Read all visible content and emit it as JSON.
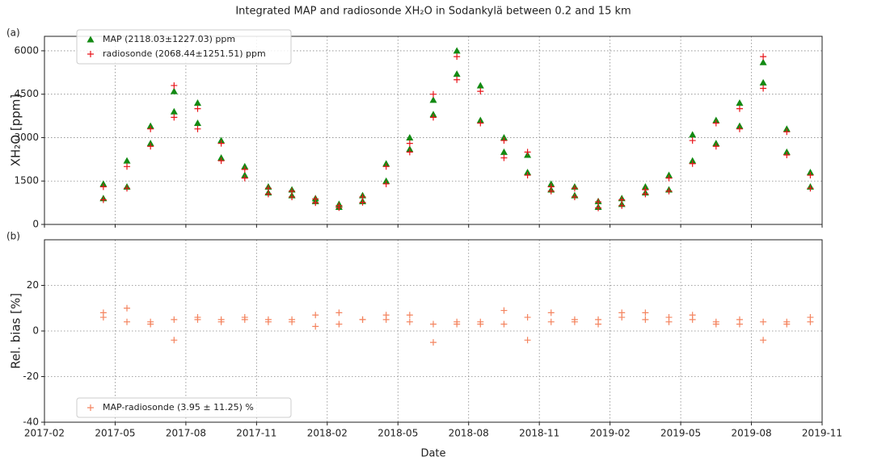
{
  "chart_data": [
    {
      "type": "scatter",
      "title": "Integrated MAP and radiosonde XH₂O in Sodankylä between 0.2 and 15 km",
      "panel": "(a)",
      "ylabel": "XH₂O [ppm]",
      "x": [
        "2017-04",
        "2017-04",
        "2017-05",
        "2017-05",
        "2017-06",
        "2017-06",
        "2017-07",
        "2017-07",
        "2017-08",
        "2017-08",
        "2017-09",
        "2017-09",
        "2017-10",
        "2017-10",
        "2017-11",
        "2017-11",
        "2017-12",
        "2017-12",
        "2018-01",
        "2018-01",
        "2018-02",
        "2018-02",
        "2018-03",
        "2018-03",
        "2018-04",
        "2018-04",
        "2018-05",
        "2018-05",
        "2018-06",
        "2018-06",
        "2018-07",
        "2018-07",
        "2018-08",
        "2018-08",
        "2018-09",
        "2018-09",
        "2018-10",
        "2018-10",
        "2018-11",
        "2018-11",
        "2018-12",
        "2018-12",
        "2019-01",
        "2019-01",
        "2019-02",
        "2019-02",
        "2019-03",
        "2019-03",
        "2019-04",
        "2019-04",
        "2019-05",
        "2019-05",
        "2019-06",
        "2019-06",
        "2019-07",
        "2019-07",
        "2019-08",
        "2019-08",
        "2019-09",
        "2019-09",
        "2019-10",
        "2019-10"
      ],
      "series": [
        {
          "name": "MAP (2118.03±1227.03) ppm",
          "color": "#138a13",
          "marker": "triangle",
          "values": [
            900,
            1400,
            1300,
            2200,
            2800,
            3400,
            3900,
            4600,
            4200,
            3500,
            2900,
            2300,
            2000,
            1700,
            1300,
            1100,
            1000,
            1200,
            800,
            900,
            700,
            600,
            800,
            1000,
            1500,
            2100,
            2600,
            3000,
            3800,
            4300,
            5200,
            6000,
            4800,
            3600,
            3000,
            2500,
            1800,
            2400,
            1400,
            1200,
            1000,
            1300,
            800,
            600,
            700,
            900,
            1100,
            1300,
            1200,
            1700,
            2200,
            3100,
            3600,
            2800,
            4200,
            3400,
            5600,
            4900,
            3300,
            2500,
            1800,
            1300
          ]
        },
        {
          "name": "radiosonde (2068.44±1251.51) ppm",
          "color": "#e8141a",
          "marker": "plus",
          "values": [
            850,
            1300,
            1250,
            2000,
            2700,
            3300,
            3700,
            4800,
            4000,
            3300,
            2800,
            2200,
            1900,
            1600,
            1250,
            1050,
            950,
            1150,
            750,
            880,
            650,
            580,
            760,
            950,
            1400,
            2000,
            2500,
            2800,
            3700,
            4500,
            5000,
            5800,
            4600,
            3500,
            2900,
            2300,
            1700,
            2500,
            1300,
            1150,
            950,
            1250,
            780,
            570,
            650,
            850,
            1050,
            1200,
            1150,
            1600,
            2100,
            2900,
            3500,
            2700,
            4000,
            3300,
            5800,
            4700,
            3200,
            2400,
            1700,
            1250
          ]
        }
      ],
      "ylim": [
        0,
        6500
      ],
      "yticks": [
        0,
        1500,
        3000,
        4500,
        6000
      ],
      "grid": true,
      "legend": "upper left"
    },
    {
      "type": "scatter",
      "panel": "(b)",
      "ylabel": "Rel. bias [%]",
      "xlabel": "Date",
      "x": [
        "2017-04",
        "2017-04",
        "2017-05",
        "2017-05",
        "2017-06",
        "2017-06",
        "2017-07",
        "2017-07",
        "2017-08",
        "2017-08",
        "2017-09",
        "2017-09",
        "2017-10",
        "2017-10",
        "2017-11",
        "2017-11",
        "2017-12",
        "2017-12",
        "2018-01",
        "2018-01",
        "2018-02",
        "2018-02",
        "2018-03",
        "2018-03",
        "2018-04",
        "2018-04",
        "2018-05",
        "2018-05",
        "2018-06",
        "2018-06",
        "2018-07",
        "2018-07",
        "2018-08",
        "2018-08",
        "2018-09",
        "2018-09",
        "2018-10",
        "2018-10",
        "2018-11",
        "2018-11",
        "2018-12",
        "2018-12",
        "2019-01",
        "2019-01",
        "2019-02",
        "2019-02",
        "2019-03",
        "2019-03",
        "2019-04",
        "2019-04",
        "2019-05",
        "2019-05",
        "2019-06",
        "2019-06",
        "2019-07",
        "2019-07",
        "2019-08",
        "2019-08",
        "2019-09",
        "2019-09",
        "2019-10",
        "2019-10"
      ],
      "series": [
        {
          "name": "MAP-radiosonde (3.95 ± 11.25) %",
          "color": "#f4845f",
          "marker": "plus",
          "values": [
            6,
            8,
            4,
            10,
            4,
            3,
            5,
            -4,
            5,
            6,
            4,
            5,
            5,
            6,
            4,
            5,
            5,
            4,
            7,
            2,
            8,
            3,
            5,
            5,
            7,
            5,
            4,
            7,
            3,
            -5,
            4,
            3,
            4,
            3,
            3,
            9,
            6,
            -4,
            8,
            4,
            5,
            4,
            3,
            5,
            8,
            6,
            5,
            8,
            4,
            6,
            5,
            7,
            3,
            4,
            5,
            3,
            -4,
            4,
            3,
            4,
            6,
            4
          ]
        }
      ],
      "xlim": [
        "2017-02",
        "2019-11"
      ],
      "xticks": [
        "2017-02",
        "2017-05",
        "2017-08",
        "2017-11",
        "2018-02",
        "2018-05",
        "2018-08",
        "2018-11",
        "2019-02",
        "2019-05",
        "2019-08",
        "2019-11"
      ],
      "ylim": [
        -40,
        40
      ],
      "yticks": [
        -40,
        -20,
        0,
        20
      ],
      "grid": true,
      "legend": "lower left"
    }
  ]
}
